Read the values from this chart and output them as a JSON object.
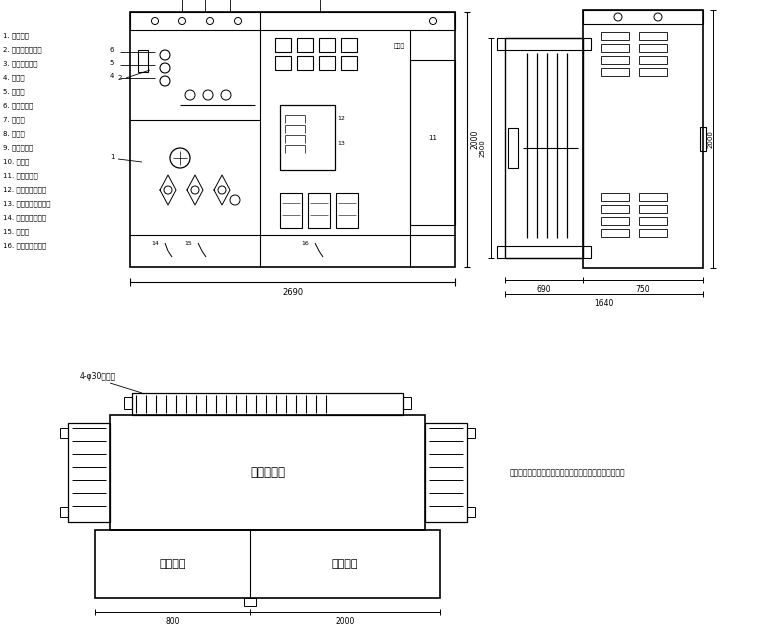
{
  "bg_color": "#ffffff",
  "legend_items": [
    "1. 高压套管",
    "2. 四位置负荷开关",
    "3. 调压分接开关",
    "4. 油位计",
    "5. 注油口",
    "6. 压力释放阀",
    "7. 温度计",
    "8. 压力表",
    "9. 储能断路器",
    "10. 表计室",
    "11. 无功补偿室",
    "12. 低压侧主断路器",
    "13. 低压侧自动断路器",
    "14. 高压室接地端子",
    "15. 底盘间",
    "16. 低压室接地端子"
  ],
  "dim_front_width": "2690",
  "dim_right_left": "690",
  "dim_right_right": "750",
  "dim_right_total": "1640",
  "dim_right_height_left": "2500",
  "dim_right_height_right": "2000",
  "dim_bottom_left": "800",
  "dim_bottom_right": "2000",
  "label_transformer": "变压器主体",
  "label_hv": "高压间隔",
  "label_lv": "低压间隔",
  "note": "说明：以上尺寸仅供参考，最终尺寸以厂家产品实物为准",
  "bolt_label": "4-φ30安装孔",
  "dim_front_height": "2000"
}
